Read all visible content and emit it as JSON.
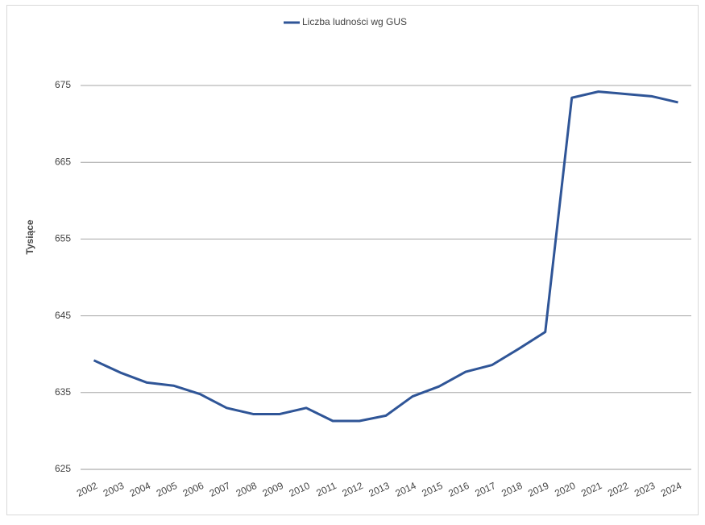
{
  "chart_data": {
    "type": "line",
    "y_label": "Tysiące",
    "categories": [
      "2002",
      "2003",
      "2004",
      "2005",
      "2006",
      "2007",
      "2008",
      "2009",
      "2010",
      "2011",
      "2012",
      "2013",
      "2014",
      "2015",
      "2016",
      "2017",
      "2018",
      "2019",
      "2020",
      "2021",
      "2022",
      "2023",
      "2024"
    ],
    "series": [
      {
        "name": "Liczba ludności wg GUS",
        "color": "#2f5597",
        "values": [
          639.2,
          637.6,
          636.3,
          635.9,
          634.8,
          633.0,
          632.2,
          632.2,
          633.0,
          631.3,
          631.3,
          632.0,
          634.5,
          635.8,
          637.7,
          638.6,
          640.7,
          642.9,
          673.4,
          674.2,
          673.9,
          673.6,
          672.8
        ]
      }
    ],
    "ylim": [
      625,
      675
    ],
    "yticks": [
      625,
      635,
      645,
      655,
      665,
      675
    ],
    "grid": true,
    "legend": "top"
  }
}
